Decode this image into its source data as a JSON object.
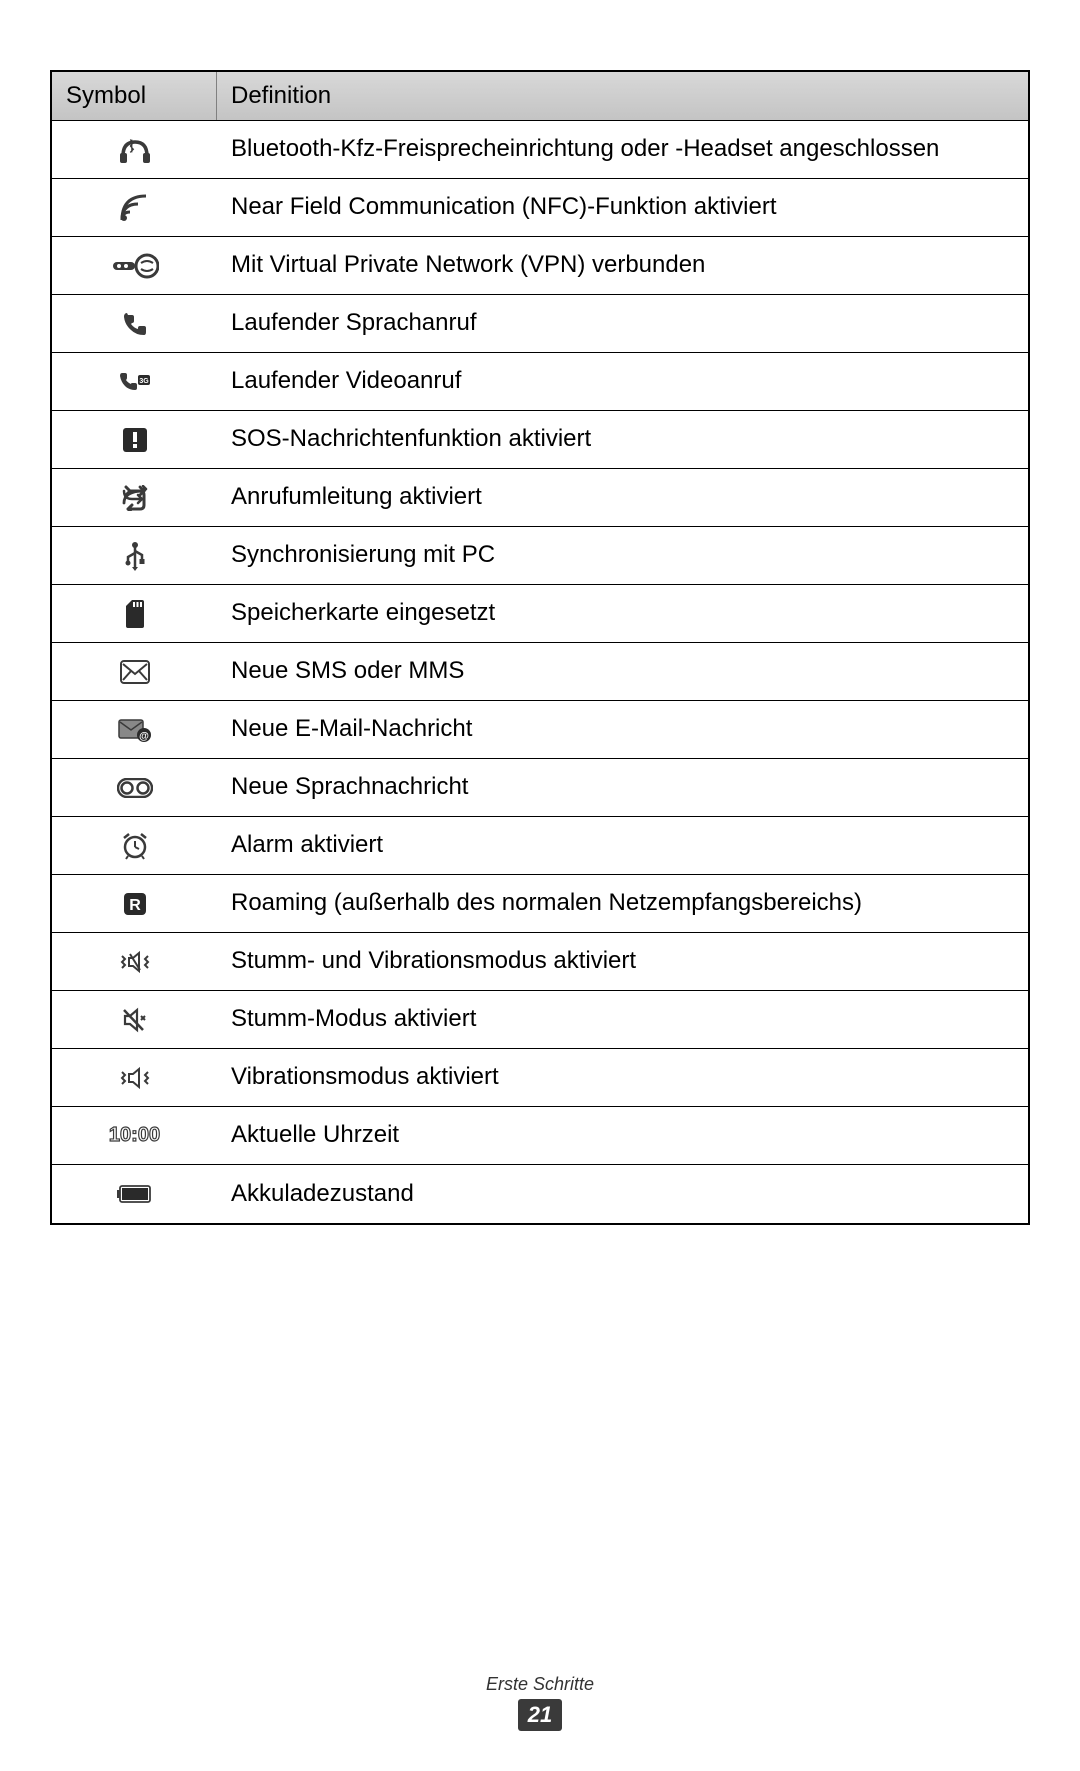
{
  "table": {
    "headers": {
      "symbol": "Symbol",
      "definition": "Definition"
    },
    "rows": [
      {
        "icon": "bluetooth-headphones",
        "definition": "Bluetooth-Kfz-Freisprecheinrichtung oder -Headset angeschlossen"
      },
      {
        "icon": "nfc",
        "definition": "Near Field Communication (NFC)-Funktion aktiviert"
      },
      {
        "icon": "vpn",
        "definition": "Mit Virtual Private Network (VPN) verbunden"
      },
      {
        "icon": "voice-call",
        "definition": "Laufender Sprachanruf"
      },
      {
        "icon": "video-call",
        "definition": "Laufender Videoanruf"
      },
      {
        "icon": "sos",
        "definition": "SOS-Nachrichtenfunktion aktiviert"
      },
      {
        "icon": "call-forwarding",
        "definition": "Anrufumleitung aktiviert"
      },
      {
        "icon": "usb-sync",
        "definition": "Synchronisierung mit PC"
      },
      {
        "icon": "sd-card",
        "definition": "Speicherkarte eingesetzt"
      },
      {
        "icon": "sms",
        "definition": "Neue SMS oder MMS"
      },
      {
        "icon": "email",
        "definition": "Neue E-Mail-Nachricht"
      },
      {
        "icon": "voicemail",
        "definition": "Neue Sprachnachricht"
      },
      {
        "icon": "alarm",
        "definition": "Alarm aktiviert"
      },
      {
        "icon": "roaming",
        "definition": "Roaming (außerhalb des normalen Netzempfangsbereichs)"
      },
      {
        "icon": "mute-vibrate",
        "definition": "Stumm- und Vibrationsmodus aktiviert"
      },
      {
        "icon": "mute",
        "definition": "Stumm-Modus aktiviert"
      },
      {
        "icon": "vibrate",
        "definition": "Vibrationsmodus aktiviert"
      },
      {
        "icon": "time",
        "definition": "Aktuelle Uhrzeit"
      },
      {
        "icon": "battery",
        "definition": "Akkuladezustand"
      }
    ],
    "time_display": "10:00"
  },
  "footer": {
    "section_title": "Erste Schritte",
    "page_number": "21"
  },
  "styles": {
    "icon_color": "#3a3a3a",
    "border_color": "#000000",
    "header_bg": "#cccccc",
    "font_size_body": 24,
    "font_size_footer": 18
  }
}
